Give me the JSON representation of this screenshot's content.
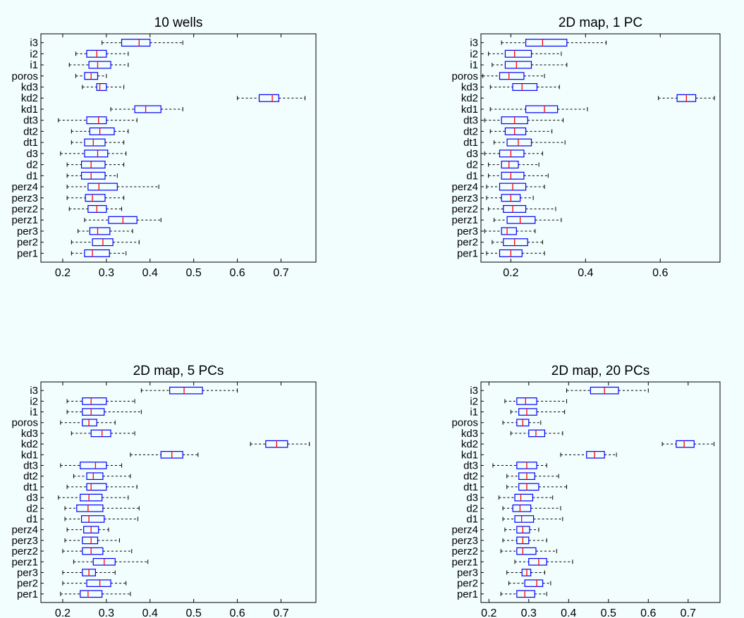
{
  "colors": {
    "background": "#f2fdfd",
    "box": "#0000ff",
    "median": "#ff0000",
    "whisker": "#000000"
  },
  "chart_data": [
    {
      "type": "boxplot",
      "title": "10 wells",
      "orientation": "horizontal",
      "xlim": [
        0.15,
        0.78
      ],
      "xticks": [
        0.2,
        0.3,
        0.4,
        0.5,
        0.6,
        0.7
      ],
      "xtick_labels": [
        "0.2",
        "0.3",
        "0.4",
        "0.5",
        "0.6",
        "0.7"
      ],
      "categories": [
        "i3",
        "i2",
        "i1",
        "poros",
        "kd3",
        "kd2",
        "kd1",
        "dt3",
        "dt2",
        "dt1",
        "d3",
        "d2",
        "d1",
        "perz4",
        "perz3",
        "perz2",
        "perz1",
        "per3",
        "per2",
        "per1"
      ],
      "boxes": [
        {
          "whislo": 0.29,
          "q1": 0.335,
          "med": 0.375,
          "q3": 0.4,
          "whishi": 0.475
        },
        {
          "whislo": 0.23,
          "q1": 0.255,
          "med": 0.278,
          "q3": 0.3,
          "whishi": 0.35
        },
        {
          "whislo": 0.215,
          "q1": 0.26,
          "med": 0.28,
          "q3": 0.31,
          "whishi": 0.35
        },
        {
          "whislo": 0.23,
          "q1": 0.25,
          "med": 0.265,
          "q3": 0.28,
          "whishi": 0.3
        },
        {
          "whislo": 0.245,
          "q1": 0.278,
          "med": 0.285,
          "q3": 0.3,
          "whishi": 0.34
        },
        {
          "whislo": 0.6,
          "q1": 0.65,
          "med": 0.68,
          "q3": 0.695,
          "whishi": 0.755
        },
        {
          "whislo": 0.31,
          "q1": 0.365,
          "med": 0.39,
          "q3": 0.425,
          "whishi": 0.475
        },
        {
          "whislo": 0.19,
          "q1": 0.255,
          "med": 0.282,
          "q3": 0.3,
          "whishi": 0.37
        },
        {
          "whislo": 0.22,
          "q1": 0.262,
          "med": 0.285,
          "q3": 0.318,
          "whishi": 0.35
        },
        {
          "whislo": 0.22,
          "q1": 0.25,
          "med": 0.27,
          "q3": 0.297,
          "whishi": 0.34
        },
        {
          "whislo": 0.195,
          "q1": 0.25,
          "med": 0.28,
          "q3": 0.303,
          "whishi": 0.345
        },
        {
          "whislo": 0.21,
          "q1": 0.243,
          "med": 0.265,
          "q3": 0.297,
          "whishi": 0.34
        },
        {
          "whislo": 0.21,
          "q1": 0.243,
          "med": 0.265,
          "q3": 0.297,
          "whishi": 0.325
        },
        {
          "whislo": 0.21,
          "q1": 0.258,
          "med": 0.283,
          "q3": 0.325,
          "whishi": 0.42
        },
        {
          "whislo": 0.21,
          "q1": 0.252,
          "med": 0.268,
          "q3": 0.297,
          "whishi": 0.34
        },
        {
          "whislo": 0.215,
          "q1": 0.258,
          "med": 0.278,
          "q3": 0.3,
          "whishi": 0.335
        },
        {
          "whislo": 0.25,
          "q1": 0.305,
          "med": 0.338,
          "q3": 0.37,
          "whishi": 0.425
        },
        {
          "whislo": 0.235,
          "q1": 0.262,
          "med": 0.28,
          "q3": 0.308,
          "whishi": 0.36
        },
        {
          "whislo": 0.22,
          "q1": 0.268,
          "med": 0.292,
          "q3": 0.315,
          "whishi": 0.375
        },
        {
          "whislo": 0.22,
          "q1": 0.25,
          "med": 0.268,
          "q3": 0.307,
          "whishi": 0.345
        }
      ]
    },
    {
      "type": "boxplot",
      "title": "2D map, 1 PC",
      "orientation": "horizontal",
      "xlim": [
        0.12,
        0.76
      ],
      "xticks": [
        0.2,
        0.4,
        0.6
      ],
      "xtick_labels": [
        "0.2",
        "0.4",
        "0.6"
      ],
      "categories": [
        "i3",
        "i2",
        "i1",
        "poros",
        "kd3",
        "kd2",
        "kd1",
        "dt3",
        "dt2",
        "dt1",
        "d3",
        "d2",
        "d1",
        "perz4",
        "perz3",
        "perz2",
        "perz1",
        "per3",
        "per2",
        "per1"
      ],
      "boxes": [
        {
          "whislo": 0.175,
          "q1": 0.24,
          "med": 0.285,
          "q3": 0.35,
          "whishi": 0.455
        },
        {
          "whislo": 0.14,
          "q1": 0.185,
          "med": 0.21,
          "q3": 0.255,
          "whishi": 0.335
        },
        {
          "whislo": 0.15,
          "q1": 0.185,
          "med": 0.215,
          "q3": 0.255,
          "whishi": 0.35
        },
        {
          "whislo": 0.125,
          "q1": 0.17,
          "med": 0.195,
          "q3": 0.235,
          "whishi": 0.29
        },
        {
          "whislo": 0.145,
          "q1": 0.205,
          "med": 0.23,
          "q3": 0.27,
          "whishi": 0.33
        },
        {
          "whislo": 0.595,
          "q1": 0.645,
          "med": 0.67,
          "q3": 0.695,
          "whishi": 0.745
        },
        {
          "whislo": 0.145,
          "q1": 0.24,
          "med": 0.29,
          "q3": 0.325,
          "whishi": 0.405
        },
        {
          "whislo": 0.13,
          "q1": 0.175,
          "med": 0.21,
          "q3": 0.245,
          "whishi": 0.34
        },
        {
          "whislo": 0.145,
          "q1": 0.185,
          "med": 0.21,
          "q3": 0.24,
          "whishi": 0.31
        },
        {
          "whislo": 0.155,
          "q1": 0.19,
          "med": 0.22,
          "q3": 0.255,
          "whishi": 0.345
        },
        {
          "whislo": 0.13,
          "q1": 0.17,
          "med": 0.2,
          "q3": 0.235,
          "whishi": 0.285
        },
        {
          "whislo": 0.14,
          "q1": 0.175,
          "med": 0.195,
          "q3": 0.22,
          "whishi": 0.275
        },
        {
          "whislo": 0.14,
          "q1": 0.175,
          "med": 0.2,
          "q3": 0.235,
          "whishi": 0.3
        },
        {
          "whislo": 0.135,
          "q1": 0.17,
          "med": 0.205,
          "q3": 0.24,
          "whishi": 0.29
        },
        {
          "whislo": 0.135,
          "q1": 0.175,
          "med": 0.2,
          "q3": 0.225,
          "whishi": 0.26
        },
        {
          "whislo": 0.14,
          "q1": 0.18,
          "med": 0.205,
          "q3": 0.24,
          "whishi": 0.32
        },
        {
          "whislo": 0.155,
          "q1": 0.19,
          "med": 0.225,
          "q3": 0.265,
          "whishi": 0.335
        },
        {
          "whislo": 0.13,
          "q1": 0.175,
          "med": 0.19,
          "q3": 0.215,
          "whishi": 0.265
        },
        {
          "whislo": 0.15,
          "q1": 0.18,
          "med": 0.21,
          "q3": 0.245,
          "whishi": 0.285
        },
        {
          "whislo": 0.135,
          "q1": 0.17,
          "med": 0.2,
          "q3": 0.23,
          "whishi": 0.29
        }
      ]
    },
    {
      "type": "boxplot",
      "title": "2D map, 5 PCs",
      "orientation": "horizontal",
      "xlim": [
        0.15,
        0.78
      ],
      "xticks": [
        0.2,
        0.3,
        0.4,
        0.5,
        0.6,
        0.7
      ],
      "xtick_labels": [
        "0.2",
        "0.3",
        "0.4",
        "0.5",
        "0.6",
        "0.7"
      ],
      "categories": [
        "i3",
        "i2",
        "i1",
        "poros",
        "kd3",
        "kd2",
        "kd1",
        "dt3",
        "dt2",
        "dt1",
        "d3",
        "d2",
        "d1",
        "perz4",
        "perz3",
        "perz2",
        "perz1",
        "per3",
        "per2",
        "per1"
      ],
      "boxes": [
        {
          "whislo": 0.38,
          "q1": 0.445,
          "med": 0.478,
          "q3": 0.52,
          "whishi": 0.6
        },
        {
          "whislo": 0.21,
          "q1": 0.245,
          "med": 0.265,
          "q3": 0.3,
          "whishi": 0.365
        },
        {
          "whislo": 0.21,
          "q1": 0.245,
          "med": 0.265,
          "q3": 0.295,
          "whishi": 0.38
        },
        {
          "whislo": 0.195,
          "q1": 0.245,
          "med": 0.26,
          "q3": 0.278,
          "whishi": 0.32
        },
        {
          "whislo": 0.22,
          "q1": 0.265,
          "med": 0.29,
          "q3": 0.31,
          "whishi": 0.365
        },
        {
          "whislo": 0.63,
          "q1": 0.665,
          "med": 0.69,
          "q3": 0.715,
          "whishi": 0.765
        },
        {
          "whislo": 0.355,
          "q1": 0.425,
          "med": 0.45,
          "q3": 0.475,
          "whishi": 0.51
        },
        {
          "whislo": 0.195,
          "q1": 0.24,
          "med": 0.275,
          "q3": 0.3,
          "whishi": 0.335
        },
        {
          "whislo": 0.225,
          "q1": 0.255,
          "med": 0.27,
          "q3": 0.292,
          "whishi": 0.355
        },
        {
          "whislo": 0.21,
          "q1": 0.255,
          "med": 0.265,
          "q3": 0.3,
          "whishi": 0.37
        },
        {
          "whislo": 0.19,
          "q1": 0.24,
          "med": 0.26,
          "q3": 0.29,
          "whishi": 0.35
        },
        {
          "whislo": 0.205,
          "q1": 0.232,
          "med": 0.258,
          "q3": 0.292,
          "whishi": 0.375
        },
        {
          "whislo": 0.205,
          "q1": 0.243,
          "med": 0.26,
          "q3": 0.295,
          "whishi": 0.372
        },
        {
          "whislo": 0.21,
          "q1": 0.248,
          "med": 0.265,
          "q3": 0.282,
          "whishi": 0.305
        },
        {
          "whislo": 0.205,
          "q1": 0.245,
          "med": 0.265,
          "q3": 0.28,
          "whishi": 0.33
        },
        {
          "whislo": 0.2,
          "q1": 0.245,
          "med": 0.265,
          "q3": 0.292,
          "whishi": 0.358
        },
        {
          "whislo": 0.225,
          "q1": 0.27,
          "med": 0.295,
          "q3": 0.32,
          "whishi": 0.395
        },
        {
          "whislo": 0.2,
          "q1": 0.245,
          "med": 0.26,
          "q3": 0.275,
          "whishi": 0.32
        },
        {
          "whislo": 0.2,
          "q1": 0.255,
          "med": 0.285,
          "q3": 0.31,
          "whishi": 0.345
        },
        {
          "whislo": 0.195,
          "q1": 0.24,
          "med": 0.258,
          "q3": 0.29,
          "whishi": 0.355
        }
      ]
    },
    {
      "type": "boxplot",
      "title": "2D map, 20 PCs",
      "orientation": "horizontal",
      "xlim": [
        0.18,
        0.78
      ],
      "xticks": [
        0.2,
        0.3,
        0.4,
        0.5,
        0.6,
        0.7
      ],
      "xtick_labels": [
        "0.2",
        "0.3",
        "0.4",
        "0.5",
        "0.6",
        "0.7"
      ],
      "categories": [
        "i3",
        "i2",
        "i1",
        "poros",
        "kd3",
        "kd2",
        "kd1",
        "dt3",
        "dt2",
        "dt1",
        "d3",
        "d2",
        "d1",
        "perz4",
        "perz3",
        "perz2",
        "perz1",
        "per3",
        "per2",
        "per1"
      ],
      "boxes": [
        {
          "whislo": 0.395,
          "q1": 0.455,
          "med": 0.49,
          "q3": 0.525,
          "whishi": 0.6
        },
        {
          "whislo": 0.24,
          "q1": 0.27,
          "med": 0.292,
          "q3": 0.32,
          "whishi": 0.395
        },
        {
          "whislo": 0.255,
          "q1": 0.275,
          "med": 0.295,
          "q3": 0.32,
          "whishi": 0.39
        },
        {
          "whislo": 0.235,
          "q1": 0.27,
          "med": 0.285,
          "q3": 0.3,
          "whishi": 0.33
        },
        {
          "whislo": 0.255,
          "q1": 0.3,
          "med": 0.318,
          "q3": 0.34,
          "whishi": 0.385
        },
        {
          "whislo": 0.635,
          "q1": 0.67,
          "med": 0.69,
          "q3": 0.715,
          "whishi": 0.765
        },
        {
          "whislo": 0.38,
          "q1": 0.445,
          "med": 0.465,
          "q3": 0.49,
          "whishi": 0.52
        },
        {
          "whislo": 0.21,
          "q1": 0.27,
          "med": 0.295,
          "q3": 0.32,
          "whishi": 0.345
        },
        {
          "whislo": 0.245,
          "q1": 0.275,
          "med": 0.295,
          "q3": 0.315,
          "whishi": 0.375
        },
        {
          "whislo": 0.245,
          "q1": 0.275,
          "med": 0.295,
          "q3": 0.325,
          "whishi": 0.395
        },
        {
          "whislo": 0.225,
          "q1": 0.265,
          "med": 0.28,
          "q3": 0.31,
          "whishi": 0.36
        },
        {
          "whislo": 0.235,
          "q1": 0.26,
          "med": 0.278,
          "q3": 0.305,
          "whishi": 0.38
        },
        {
          "whislo": 0.235,
          "q1": 0.265,
          "med": 0.282,
          "q3": 0.312,
          "whishi": 0.385
        },
        {
          "whislo": 0.24,
          "q1": 0.27,
          "med": 0.285,
          "q3": 0.302,
          "whishi": 0.325
        },
        {
          "whislo": 0.235,
          "q1": 0.27,
          "med": 0.285,
          "q3": 0.3,
          "whishi": 0.345
        },
        {
          "whislo": 0.23,
          "q1": 0.27,
          "med": 0.285,
          "q3": 0.318,
          "whishi": 0.37
        },
        {
          "whislo": 0.265,
          "q1": 0.3,
          "med": 0.325,
          "q3": 0.345,
          "whishi": 0.41
        },
        {
          "whislo": 0.245,
          "q1": 0.283,
          "med": 0.295,
          "q3": 0.305,
          "whishi": 0.34
        },
        {
          "whislo": 0.25,
          "q1": 0.29,
          "med": 0.32,
          "q3": 0.335,
          "whishi": 0.355
        },
        {
          "whislo": 0.23,
          "q1": 0.27,
          "med": 0.29,
          "q3": 0.315,
          "whishi": 0.345
        }
      ]
    }
  ]
}
